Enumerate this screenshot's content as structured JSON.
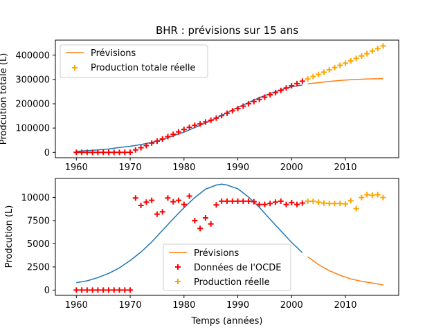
{
  "chart_data": [
    {
      "type": "line",
      "title": "BHR : prévisions sur 15 ans",
      "xlabel": "",
      "ylabel": "Prodcution totale (L)",
      "xlim": [
        1956.1,
        2019.9
      ],
      "ylim": [
        -22000,
        462000
      ],
      "xticks": [
        1960,
        1970,
        1980,
        1990,
        2000,
        2010
      ],
      "yticks": [
        0,
        100000,
        200000,
        300000,
        400000
      ],
      "ytick_labels": [
        "0",
        "100000",
        "200000",
        "300000",
        "400000"
      ],
      "legend_position": "upper left",
      "legend": [
        "Prévisions",
        "Production totale réelle"
      ],
      "colors": {
        "fit": "#1f77b4",
        "forecast": "#ff7f0e",
        "ocde": "#ff0000",
        "real": "#ffa500"
      },
      "series": [
        {
          "role": "fit",
          "kind": "line",
          "x": [
            1960,
            1962,
            1964,
            1966,
            1968,
            1970,
            1972,
            1974,
            1976,
            1978,
            1980,
            1982,
            1984,
            1986,
            1988,
            1990,
            1992,
            1994,
            1996,
            1998,
            2000,
            2002
          ],
          "y": [
            4000,
            7000,
            10000,
            14000,
            20000,
            25000,
            32000,
            41000,
            53000,
            68000,
            83000,
            102000,
            121000,
            141000,
            163000,
            185000,
            205000,
            225000,
            242000,
            257000,
            270000,
            277000
          ]
        },
        {
          "role": "forecast",
          "name": "Prévisions",
          "kind": "line",
          "x": [
            2003,
            2005,
            2007,
            2009,
            2011,
            2013,
            2015,
            2017
          ],
          "y": [
            282000,
            287000,
            292000,
            296000,
            299000,
            301000,
            302500,
            303500
          ]
        },
        {
          "role": "ocde",
          "kind": "marker",
          "x": [
            1960,
            1961,
            1962,
            1963,
            1964,
            1965,
            1966,
            1967,
            1968,
            1969,
            1970,
            1971,
            1972,
            1973,
            1974,
            1975,
            1976,
            1977,
            1978,
            1979,
            1980,
            1981,
            1982,
            1983,
            1984,
            1985,
            1986,
            1987,
            1988,
            1989,
            1990,
            1991,
            1992,
            1993,
            1994,
            1995,
            1996,
            1997,
            1998,
            1999,
            2000,
            2001,
            2002
          ],
          "y": [
            0,
            0,
            0,
            0,
            0,
            0,
            0,
            0,
            0,
            0,
            0,
            10000,
            19000,
            28000,
            38000,
            46000,
            55000,
            65000,
            74000,
            84000,
            94000,
            103000,
            111000,
            117000,
            125000,
            132000,
            141000,
            151000,
            161000,
            171000,
            180000,
            190000,
            200000,
            209000,
            218000,
            227000,
            237000,
            246000,
            255000,
            265000,
            274000,
            283000,
            293000
          ]
        },
        {
          "role": "real",
          "name": "Production totale réelle",
          "kind": "marker",
          "x": [
            2003,
            2004,
            2005,
            2006,
            2007,
            2008,
            2009,
            2010,
            2011,
            2012,
            2013,
            2014,
            2015,
            2016,
            2017
          ],
          "y": [
            302000,
            312000,
            321000,
            330000,
            340000,
            349000,
            358000,
            367000,
            377000,
            387000,
            397000,
            406000,
            417000,
            427000,
            438000
          ]
        }
      ]
    },
    {
      "type": "line",
      "title": "",
      "xlabel": "Temps (années)",
      "ylabel": "Prodcution (L)",
      "xlim": [
        1956.1,
        2019.9
      ],
      "ylim": [
        -570,
        12060
      ],
      "xticks": [
        1960,
        1970,
        1980,
        1990,
        2000,
        2010
      ],
      "yticks": [
        0,
        2500,
        5000,
        7500,
        10000
      ],
      "ytick_labels": [
        "0",
        "2500",
        "5000",
        "7500",
        "10000"
      ],
      "legend_position": "lower center",
      "legend": [
        "Prévisions",
        "Données de l'OCDE",
        "Production réelle"
      ],
      "colors": {
        "fit": "#1f77b4",
        "forecast": "#ff7f0e",
        "ocde": "#ff0000",
        "real": "#ffa500"
      },
      "series": [
        {
          "role": "fit",
          "kind": "line",
          "x": [
            1960,
            1962,
            1964,
            1966,
            1968,
            1970,
            1972,
            1974,
            1976,
            1978,
            1980,
            1982,
            1984,
            1986,
            1987,
            1988,
            1990,
            1992,
            1994,
            1996,
            1998,
            2000,
            2002
          ],
          "y": [
            800,
            1000,
            1350,
            1800,
            2400,
            3200,
            4100,
            5200,
            6450,
            7700,
            8900,
            10000,
            10900,
            11350,
            11450,
            11350,
            10950,
            10050,
            8950,
            7650,
            6400,
            5150,
            4050
          ]
        },
        {
          "role": "forecast",
          "name": "Prévisions",
          "kind": "line",
          "x": [
            2003,
            2005,
            2007,
            2009,
            2011,
            2013,
            2015,
            2017
          ],
          "y": [
            3600,
            2750,
            2100,
            1600,
            1200,
            950,
            750,
            550
          ]
        },
        {
          "role": "ocde",
          "name": "Données de l'OCDE",
          "kind": "marker",
          "x": [
            1960,
            1961,
            1962,
            1963,
            1964,
            1965,
            1966,
            1967,
            1968,
            1969,
            1970,
            1971,
            1972,
            1973,
            1974,
            1975,
            1976,
            1977,
            1978,
            1979,
            1980,
            1981,
            1982,
            1983,
            1984,
            1985,
            1986,
            1987,
            1988,
            1989,
            1990,
            1991,
            1992,
            1993,
            1994,
            1995,
            1996,
            1997,
            1998,
            1999,
            2000,
            2001,
            2002
          ],
          "y": [
            0,
            0,
            0,
            0,
            0,
            0,
            0,
            0,
            0,
            0,
            0,
            9950,
            9150,
            9500,
            9700,
            8200,
            8450,
            9950,
            9550,
            9700,
            9250,
            10150,
            7500,
            6650,
            7800,
            7150,
            9200,
            9600,
            9600,
            9600,
            9600,
            9600,
            9600,
            9550,
            9250,
            9250,
            9350,
            9500,
            9600,
            9250,
            9450,
            9250,
            9400
          ]
        },
        {
          "role": "real",
          "name": "Production réelle",
          "kind": "marker",
          "x": [
            2003,
            2004,
            2005,
            2006,
            2007,
            2008,
            2009,
            2010,
            2011,
            2012,
            2013,
            2014,
            2015,
            2016,
            2017
          ],
          "y": [
            9600,
            9600,
            9500,
            9400,
            9350,
            9350,
            9350,
            9300,
            9650,
            8800,
            10000,
            10300,
            10250,
            10300,
            10000
          ]
        }
      ]
    }
  ]
}
